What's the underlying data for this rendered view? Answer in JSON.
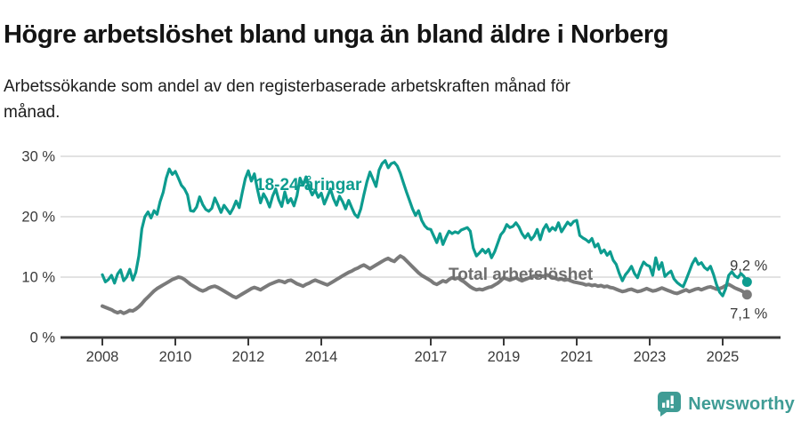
{
  "header": {
    "title": "Högre arbetslöshet bland unga än bland äldre i Norberg",
    "subtitle_lines": [
      "Arbetssökande som andel av den registerbaserade arbetskraften månad för",
      "månad."
    ]
  },
  "chart_data": {
    "type": "line",
    "title": "Högre arbetslöshet bland unga än bland äldre i Norberg",
    "subtitle": "Arbetssökande som andel av den registerbaserade arbetskraften månad för månad.",
    "x_unit": "month",
    "x_start": "2008-01",
    "x_end": "2025-09",
    "ylim": [
      0,
      31
    ],
    "grid": true,
    "yticks": [
      {
        "value": 0,
        "label": "0 %"
      },
      {
        "value": 10,
        "label": "10 %"
      },
      {
        "value": 20,
        "label": "20 %"
      },
      {
        "value": 30,
        "label": "30 %"
      }
    ],
    "xticks": [
      {
        "year": 2008,
        "label": "2008"
      },
      {
        "year": 2010,
        "label": "2010"
      },
      {
        "year": 2012,
        "label": "2012"
      },
      {
        "year": 2014,
        "label": "2014"
      },
      {
        "year": 2017,
        "label": "2017"
      },
      {
        "year": 2019,
        "label": "2019"
      },
      {
        "year": 2021,
        "label": "2021"
      },
      {
        "year": 2023,
        "label": "2023"
      },
      {
        "year": 2025,
        "label": "2025"
      }
    ],
    "series": [
      {
        "name": "Total arbetslöshet",
        "color": "#7a7a7a",
        "label_color": "#6e6e6e",
        "end_label": "7,1 %",
        "end_value": 7.1,
        "values": [
          5.2,
          5.0,
          4.8,
          4.6,
          4.3,
          4.1,
          4.3,
          4.0,
          4.2,
          4.5,
          4.4,
          4.7,
          5.1,
          5.6,
          6.2,
          6.7,
          7.2,
          7.7,
          8.1,
          8.4,
          8.7,
          9.0,
          9.3,
          9.6,
          9.8,
          10.0,
          9.9,
          9.6,
          9.2,
          8.8,
          8.5,
          8.2,
          7.9,
          7.7,
          7.9,
          8.2,
          8.4,
          8.5,
          8.3,
          8.0,
          7.7,
          7.4,
          7.1,
          6.8,
          6.6,
          6.9,
          7.2,
          7.5,
          7.8,
          8.1,
          8.3,
          8.1,
          7.9,
          8.2,
          8.5,
          8.8,
          9.0,
          9.2,
          9.4,
          9.3,
          9.1,
          9.4,
          9.5,
          9.2,
          8.9,
          8.7,
          8.5,
          8.8,
          9.0,
          9.3,
          9.5,
          9.3,
          9.1,
          8.9,
          8.7,
          9.0,
          9.3,
          9.6,
          9.9,
          10.2,
          10.5,
          10.8,
          11.0,
          11.3,
          11.5,
          11.8,
          12.0,
          11.7,
          11.4,
          11.7,
          12.0,
          12.3,
          12.6,
          12.9,
          13.1,
          12.8,
          12.6,
          13.1,
          13.5,
          13.2,
          12.7,
          12.2,
          11.7,
          11.2,
          10.7,
          10.3,
          10.0,
          9.7,
          9.4,
          9.0,
          8.8,
          9.1,
          9.4,
          9.2,
          9.6,
          9.9,
          9.7,
          9.9,
          9.5,
          9.2,
          8.8,
          8.4,
          8.1,
          7.9,
          8.0,
          7.9,
          8.1,
          8.3,
          8.4,
          8.7,
          9.0,
          9.4,
          9.9,
          9.7,
          9.5,
          9.7,
          9.9,
          9.6,
          9.4,
          9.6,
          9.8,
          10.0,
          10.2,
          10.1,
          10.3,
          10.1,
          10.4,
          10.2,
          10.0,
          9.8,
          9.6,
          9.7,
          9.5,
          9.6,
          9.4,
          9.2,
          9.1,
          9.0,
          8.9,
          8.7,
          8.8,
          8.6,
          8.7,
          8.5,
          8.6,
          8.4,
          8.5,
          8.3,
          8.2,
          8.0,
          7.8,
          7.6,
          7.7,
          7.9,
          8.0,
          7.8,
          7.6,
          7.7,
          7.9,
          8.1,
          7.9,
          7.7,
          7.8,
          8.0,
          8.2,
          8.0,
          7.8,
          7.6,
          7.4,
          7.3,
          7.5,
          7.7,
          7.9,
          7.6,
          7.8,
          8.0,
          8.1,
          7.9,
          8.1,
          8.3,
          8.4,
          8.2,
          8.0,
          8.1,
          8.3,
          8.6,
          8.8,
          8.5,
          8.2,
          8.0,
          7.8,
          7.5,
          7.1
        ]
      },
      {
        "name": "18-24-åringar",
        "color": "#0d9c8f",
        "label_color": "#0d9c8f",
        "end_label": "9,2 %",
        "end_value": 9.2,
        "values": [
          10.4,
          9.2,
          9.6,
          10.3,
          9.0,
          10.5,
          11.2,
          9.4,
          10.0,
          11.3,
          9.5,
          10.8,
          13.5,
          18.0,
          20.0,
          20.8,
          19.8,
          21.0,
          20.4,
          22.5,
          24.0,
          26.4,
          27.9,
          27.0,
          27.5,
          26.4,
          25.2,
          24.6,
          23.6,
          21.0,
          20.9,
          21.6,
          23.3,
          22.0,
          21.2,
          20.9,
          21.4,
          23.1,
          22.0,
          20.7,
          21.9,
          21.2,
          20.5,
          21.4,
          22.6,
          21.5,
          24.0,
          26.3,
          27.6,
          25.9,
          27.1,
          24.5,
          22.3,
          23.8,
          22.9,
          21.6,
          23.4,
          24.6,
          22.8,
          21.7,
          24.1,
          22.3,
          23.0,
          21.8,
          23.5,
          26.4,
          25.2,
          26.6,
          24.8,
          23.6,
          24.4,
          23.2,
          23.9,
          22.1,
          23.3,
          24.6,
          23.0,
          21.9,
          23.4,
          22.5,
          21.3,
          22.7,
          21.5,
          20.4,
          19.9,
          21.3,
          23.6,
          25.8,
          27.4,
          26.2,
          25.0,
          27.7,
          28.8,
          29.3,
          28.1,
          28.8,
          29.0,
          28.4,
          27.2,
          25.6,
          24.1,
          22.7,
          21.3,
          20.2,
          21.0,
          19.4,
          18.5,
          18.0,
          17.9,
          16.8,
          15.7,
          17.2,
          15.4,
          16.6,
          17.6,
          17.2,
          17.5,
          17.3,
          17.8,
          18.0,
          18.2,
          17.6,
          14.8,
          13.5,
          14.0,
          14.6,
          14.0,
          14.6,
          13.2,
          14.2,
          15.6,
          17.0,
          17.6,
          18.7,
          18.2,
          18.4,
          19.0,
          18.3,
          17.2,
          16.5,
          17.2,
          16.2,
          16.8,
          17.9,
          16.2,
          17.9,
          18.7,
          17.6,
          18.2,
          17.8,
          19.0,
          17.5,
          18.3,
          19.1,
          18.6,
          19.2,
          19.4,
          16.9,
          16.5,
          16.2,
          15.8,
          16.4,
          15.0,
          15.5,
          14.0,
          14.5,
          13.6,
          14.2,
          12.8,
          12.1,
          10.6,
          9.4,
          10.4,
          11.0,
          11.8,
          10.6,
          9.9,
          11.4,
          12.5,
          12.0,
          11.8,
          10.3,
          13.2,
          11.3,
          12.4,
          10.1,
          10.6,
          11.0,
          9.7,
          9.1,
          8.7,
          8.4,
          9.6,
          10.9,
          12.2,
          13.1,
          12.1,
          12.4,
          11.6,
          11.2,
          11.8,
          10.4,
          8.7,
          7.5,
          6.9,
          8.1,
          10.3,
          10.9,
          10.2,
          9.9,
          10.6,
          10.1,
          9.2
        ]
      }
    ]
  },
  "footer": {
    "brand": "Newsworthy",
    "brand_color": "#3f9c95",
    "logo_icon": "newsworthy-chart-bubble-icon"
  },
  "colors": {
    "young_series": "#0d9c8f",
    "total_series": "#7a7a7a",
    "axis_line": "#3a3a3a",
    "axis_text": "#3a3a3a",
    "gridline": "#d9d9d9",
    "end_label_text": "#3a3a3a"
  }
}
